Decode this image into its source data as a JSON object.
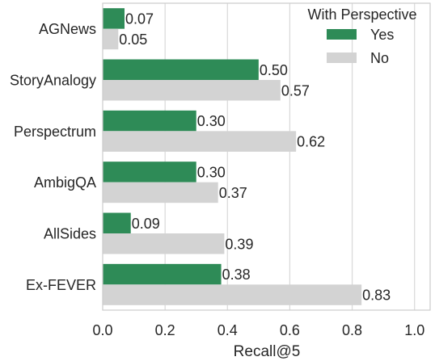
{
  "chart_data": {
    "type": "bar",
    "orientation": "horizontal",
    "categories": [
      "AGNews",
      "StoryAnalogy",
      "Perspectrum",
      "AmbigQA",
      "AllSides",
      "Ex-FEVER"
    ],
    "series": [
      {
        "name": "Yes",
        "values": [
          0.07,
          0.5,
          0.3,
          0.3,
          0.09,
          0.38
        ],
        "labels": [
          "0.07",
          "0.50",
          "0.30",
          "0.30",
          "0.09",
          "0.38"
        ],
        "color": "#2e8b57"
      },
      {
        "name": "No",
        "values": [
          0.05,
          0.57,
          0.62,
          0.37,
          0.39,
          0.83
        ],
        "labels": [
          "0.05",
          "0.57",
          "0.62",
          "0.37",
          "0.39",
          "0.83"
        ],
        "color": "#d3d3d3"
      }
    ],
    "xlabel": "Recall@5",
    "ylabel": "",
    "xlim": [
      0.0,
      1.05
    ],
    "xticks": [
      0.0,
      0.2,
      0.4,
      0.6,
      0.8,
      1.0
    ],
    "xtick_labels": [
      "0.0",
      "0.2",
      "0.4",
      "0.6",
      "0.8",
      "1.0"
    ],
    "grid": "vertical",
    "legend": {
      "title": "With Perspective",
      "placement": "top-right"
    }
  }
}
